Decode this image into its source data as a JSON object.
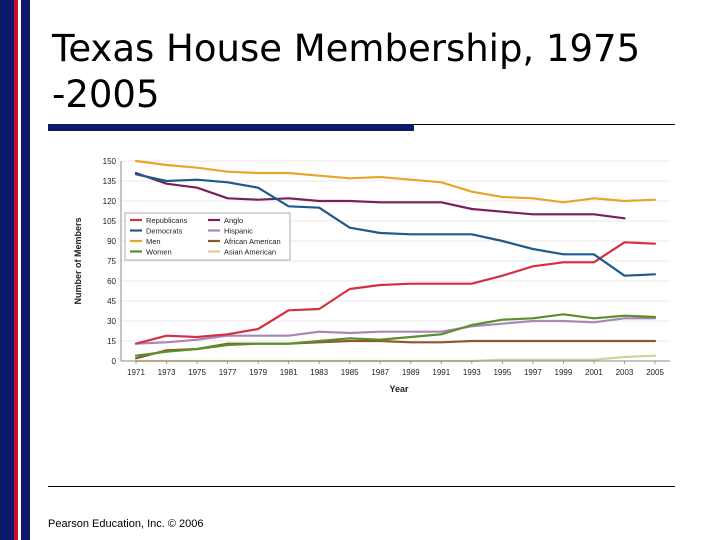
{
  "slide": {
    "title": "Texas House Membership, 1975 -2005",
    "footer": "Pearson Education, Inc. © 2006"
  },
  "chart_data": {
    "type": "line",
    "title": "",
    "xlabel": "Year",
    "ylabel": "Number of Members",
    "x": [
      1971,
      1973,
      1975,
      1977,
      1979,
      1981,
      1983,
      1985,
      1987,
      1989,
      1991,
      1993,
      1995,
      1997,
      1999,
      2001,
      2003,
      2005
    ],
    "xticks": [
      "1971",
      "1973",
      "1975",
      "1977",
      "1979",
      "1981",
      "1983",
      "1985",
      "1987",
      "1989",
      "1991",
      "1993",
      "1995",
      "1997",
      "1999",
      "2001",
      "2003",
      "2005"
    ],
    "ylim": [
      0,
      150
    ],
    "yticks": [
      "0",
      "15",
      "30",
      "45",
      "60",
      "75",
      "90",
      "105",
      "120",
      "135",
      "150"
    ],
    "grid": "horizontal",
    "legend_position": "upper-left",
    "series": [
      {
        "name": "Republicans",
        "color": "#d62f43",
        "values": [
          13,
          19,
          18,
          20,
          24,
          38,
          39,
          54,
          57,
          58,
          58,
          58,
          64,
          71,
          74,
          74,
          89,
          88
        ]
      },
      {
        "name": "Democrats",
        "color": "#1f5a8f",
        "values": [
          140,
          135,
          136,
          134,
          130,
          116,
          115,
          100,
          96,
          95,
          95,
          95,
          90,
          84,
          80,
          80,
          64,
          65
        ]
      },
      {
        "name": "Men",
        "color": "#e7a62a",
        "values": [
          150,
          147,
          145,
          142,
          141,
          141,
          139,
          137,
          138,
          136,
          134,
          127,
          123,
          122,
          119,
          122,
          120,
          121
        ]
      },
      {
        "name": "Women",
        "color": "#5a8f2a",
        "values": [
          4,
          7,
          9,
          12,
          13,
          13,
          15,
          17,
          16,
          18,
          20,
          27,
          31,
          32,
          35,
          32,
          34,
          33
        ]
      },
      {
        "name": "Anglo",
        "color": "#7a1f5a",
        "values": [
          141,
          133,
          130,
          122,
          121,
          122,
          120,
          120,
          119,
          119,
          119,
          114,
          112,
          110,
          110,
          110,
          107,
          null
        ]
      },
      {
        "name": "Hispanic",
        "color": "#a986b8",
        "values": [
          13,
          14,
          16,
          19,
          19,
          19,
          22,
          21,
          22,
          22,
          22,
          26,
          28,
          30,
          30,
          29,
          32,
          32
        ]
      },
      {
        "name": "African American",
        "color": "#8a5a2b",
        "values": [
          2,
          8,
          9,
          13,
          13,
          13,
          14,
          15,
          15,
          14,
          14,
          15,
          15,
          15,
          15,
          15,
          15,
          15
        ]
      },
      {
        "name": "Asian American",
        "color": "#d6cf9a",
        "values": [
          0,
          0,
          0,
          0,
          0,
          0,
          0,
          0,
          0,
          0,
          0,
          0,
          1,
          1,
          1,
          1,
          3,
          4
        ]
      }
    ]
  }
}
